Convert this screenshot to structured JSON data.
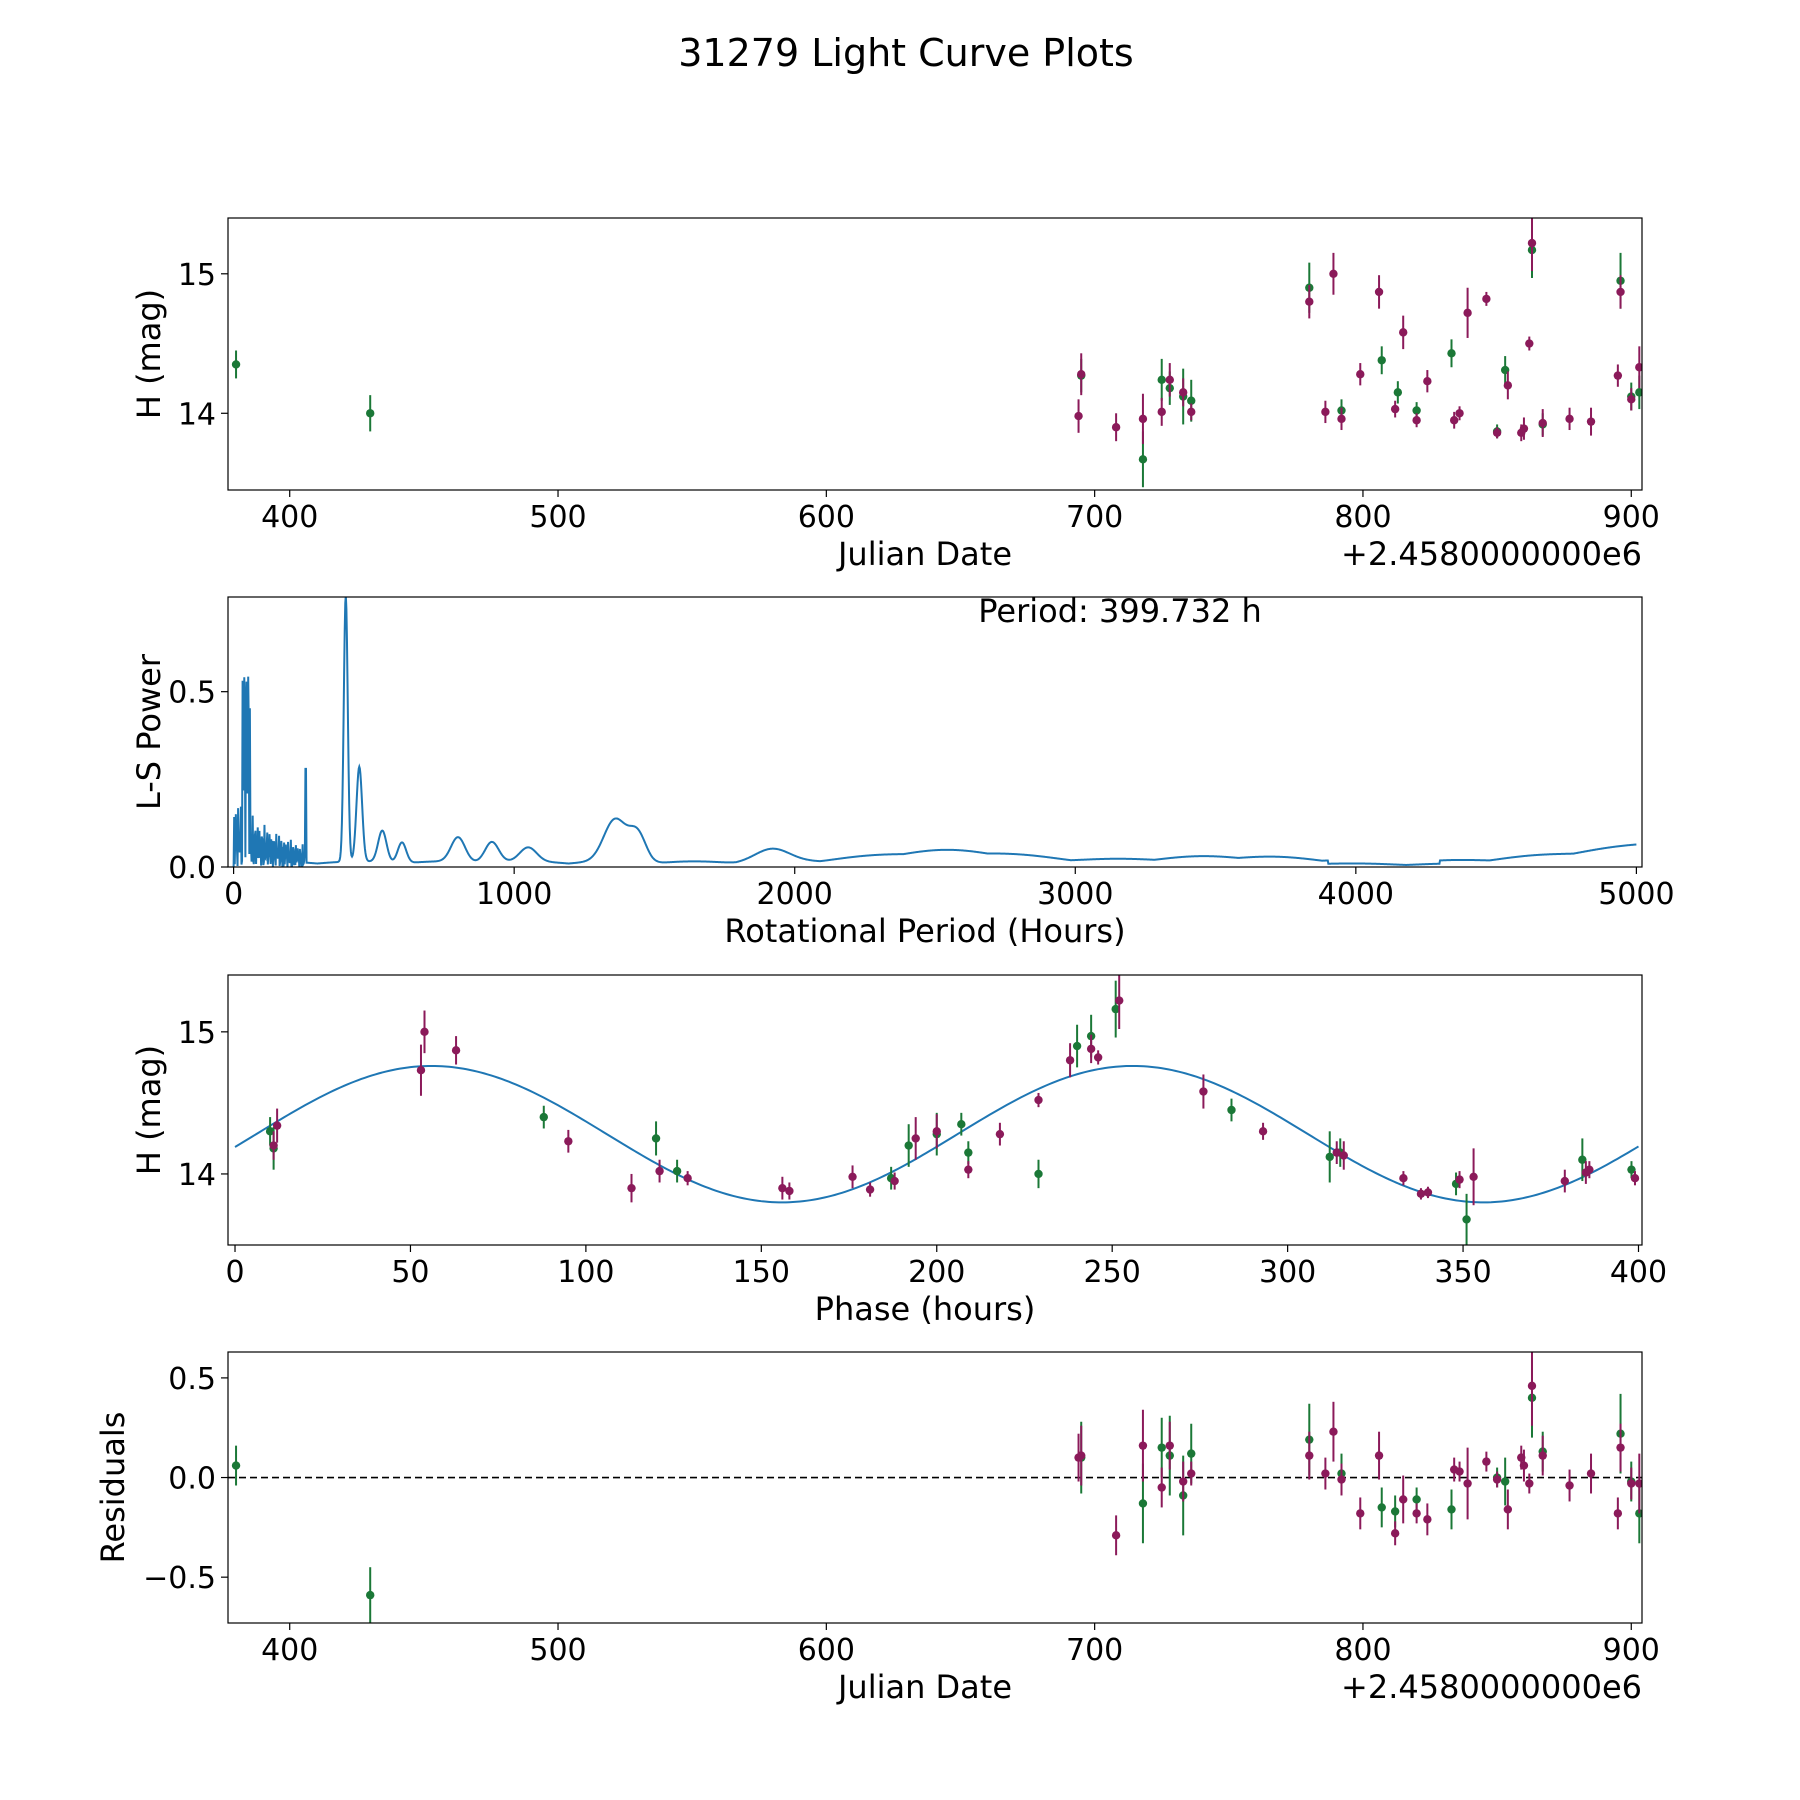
{
  "figure_title": "31279 Light Curve Plots",
  "colors": {
    "green": "#1b7837",
    "purple": "#8b1a5a",
    "line": "#1f77b4",
    "axis": "#000000"
  },
  "chart_data": [
    {
      "id": "lightcurve",
      "type": "scatter",
      "xlabel": "Julian Date",
      "ylabel": "H (mag)",
      "offset_label": "+2.4580000000e6",
      "xlim": [
        377,
        904
      ],
      "ylim": [
        13.45,
        15.4
      ],
      "xticks": [
        400,
        500,
        600,
        700,
        800,
        900
      ],
      "yticks": [
        14,
        15
      ],
      "series": [
        {
          "name": "green",
          "color": "green",
          "points": [
            [
              380,
              14.35,
              0.1
            ],
            [
              430,
              14.0,
              0.13
            ],
            [
              695,
              14.27,
              0.12
            ],
            [
              718,
              13.67,
              0.2
            ],
            [
              725,
              14.24,
              0.15
            ],
            [
              728,
              14.18,
              0.12
            ],
            [
              733,
              14.12,
              0.2
            ],
            [
              736,
              14.09,
              0.15
            ],
            [
              780,
              14.9,
              0.18
            ],
            [
              792,
              14.02,
              0.08
            ],
            [
              807,
              14.38,
              0.1
            ],
            [
              813,
              14.15,
              0.08
            ],
            [
              820,
              14.02,
              0.06
            ],
            [
              833,
              14.43,
              0.1
            ],
            [
              850,
              13.87,
              0.05
            ],
            [
              853,
              14.31,
              0.1
            ],
            [
              863,
              15.17,
              0.2
            ],
            [
              867,
              13.92,
              0.08
            ],
            [
              896,
              14.95,
              0.2
            ],
            [
              900,
              14.12,
              0.1
            ],
            [
              903,
              14.15,
              0.12
            ]
          ]
        },
        {
          "name": "purple",
          "color": "purple",
          "points": [
            [
              694,
              13.98,
              0.12
            ],
            [
              695,
              14.28,
              0.15
            ],
            [
              708,
              13.9,
              0.1
            ],
            [
              718,
              13.96,
              0.18
            ],
            [
              725,
              14.01,
              0.1
            ],
            [
              728,
              14.24,
              0.12
            ],
            [
              733,
              14.15,
              0.1
            ],
            [
              736,
              14.01,
              0.06
            ],
            [
              780,
              14.8,
              0.12
            ],
            [
              786,
              14.01,
              0.08
            ],
            [
              789,
              15.0,
              0.15
            ],
            [
              792,
              13.96,
              0.08
            ],
            [
              799,
              14.28,
              0.08
            ],
            [
              806,
              14.87,
              0.12
            ],
            [
              812,
              14.03,
              0.06
            ],
            [
              815,
              14.58,
              0.12
            ],
            [
              820,
              13.95,
              0.05
            ],
            [
              824,
              14.23,
              0.08
            ],
            [
              834,
              13.95,
              0.06
            ],
            [
              836,
              14.0,
              0.05
            ],
            [
              839,
              14.72,
              0.18
            ],
            [
              846,
              14.82,
              0.05
            ],
            [
              850,
              13.86,
              0.04
            ],
            [
              854,
              14.2,
              0.1
            ],
            [
              859,
              13.86,
              0.06
            ],
            [
              860,
              13.89,
              0.08
            ],
            [
              862,
              14.5,
              0.05
            ],
            [
              863,
              15.22,
              0.2
            ],
            [
              867,
              13.93,
              0.1
            ],
            [
              877,
              13.96,
              0.08
            ],
            [
              885,
              13.94,
              0.1
            ],
            [
              895,
              14.27,
              0.08
            ],
            [
              896,
              14.87,
              0.12
            ],
            [
              900,
              14.1,
              0.08
            ],
            [
              903,
              14.33,
              0.15
            ]
          ]
        }
      ]
    },
    {
      "id": "periodogram",
      "type": "line",
      "xlabel": "Rotational Period (Hours)",
      "ylabel": "L-S Power",
      "annotation": "Period: 399.732 h",
      "xlim": [
        -20,
        5020
      ],
      "ylim": [
        0,
        0.77
      ],
      "xticks": [
        0,
        1000,
        2000,
        3000,
        4000,
        5000
      ],
      "yticks": [
        0.0,
        0.5
      ],
      "ytick_labels": [
        "0.0",
        "0.5"
      ],
      "series": [
        {
          "name": "L-S Power",
          "color": "line",
          "x_start": 0,
          "x_end": 5000,
          "step": 2,
          "noise_until": 260,
          "peak_period": 399.732
        }
      ]
    },
    {
      "id": "phased",
      "type": "scatter",
      "xlabel": "Phase (hours)",
      "ylabel": "H (mag)",
      "xlim": [
        -2,
        401
      ],
      "ylim": [
        13.5,
        15.4
      ],
      "xticks": [
        0,
        50,
        100,
        150,
        200,
        250,
        300,
        350,
        400
      ],
      "yticks": [
        14,
        15
      ],
      "fit": {
        "type": "sine",
        "mean": 14.28,
        "amplitude": 0.48,
        "peak_phase": 56,
        "period": 199.866,
        "x_start": 0,
        "x_end": 400
      },
      "series": [
        {
          "name": "green",
          "color": "green",
          "points": [
            [
              10,
              14.3,
              0.1
            ],
            [
              11,
              14.18,
              0.15
            ],
            [
              88,
              14.4,
              0.08
            ],
            [
              120,
              14.25,
              0.12
            ],
            [
              126,
              14.02,
              0.08
            ],
            [
              187,
              13.97,
              0.08
            ],
            [
              192,
              14.2,
              0.15
            ],
            [
              200,
              14.28,
              0.15
            ],
            [
              207,
              14.35,
              0.08
            ],
            [
              209,
              14.15,
              0.08
            ],
            [
              229,
              14.0,
              0.1
            ],
            [
              240,
              14.9,
              0.15
            ],
            [
              244,
              14.97,
              0.15
            ],
            [
              251,
              15.16,
              0.2
            ],
            [
              284,
              14.45,
              0.08
            ],
            [
              312,
              14.12,
              0.18
            ],
            [
              315,
              14.15,
              0.1
            ],
            [
              348,
              13.93,
              0.08
            ],
            [
              351,
              13.68,
              0.18
            ],
            [
              384,
              14.1,
              0.15
            ],
            [
              398,
              14.03,
              0.06
            ]
          ]
        },
        {
          "name": "purple",
          "color": "purple",
          "points": [
            [
              11,
              14.2,
              0.1
            ],
            [
              12,
              14.34,
              0.12
            ],
            [
              53,
              14.73,
              0.18
            ],
            [
              54,
              15.0,
              0.15
            ],
            [
              63,
              14.87,
              0.1
            ],
            [
              95,
              14.23,
              0.08
            ],
            [
              113,
              13.9,
              0.1
            ],
            [
              121,
              14.02,
              0.08
            ],
            [
              129,
              13.97,
              0.05
            ],
            [
              156,
              13.9,
              0.08
            ],
            [
              158,
              13.88,
              0.06
            ],
            [
              176,
              13.98,
              0.08
            ],
            [
              181,
              13.89,
              0.05
            ],
            [
              188,
              13.95,
              0.06
            ],
            [
              194,
              14.25,
              0.15
            ],
            [
              200,
              14.3,
              0.12
            ],
            [
              209,
              14.03,
              0.06
            ],
            [
              218,
              14.28,
              0.08
            ],
            [
              229,
              14.52,
              0.05
            ],
            [
              238,
              14.8,
              0.12
            ],
            [
              244,
              14.88,
              0.1
            ],
            [
              246,
              14.82,
              0.05
            ],
            [
              252,
              15.22,
              0.2
            ],
            [
              276,
              14.58,
              0.12
            ],
            [
              293,
              14.3,
              0.06
            ],
            [
              314,
              14.15,
              0.08
            ],
            [
              316,
              14.13,
              0.1
            ],
            [
              333,
              13.97,
              0.05
            ],
            [
              338,
              13.86,
              0.04
            ],
            [
              340,
              13.87,
              0.04
            ],
            [
              349,
              13.96,
              0.06
            ],
            [
              353,
              13.98,
              0.2
            ],
            [
              379,
              13.95,
              0.08
            ],
            [
              385,
              14.01,
              0.08
            ],
            [
              386,
              14.03,
              0.06
            ],
            [
              399,
              13.97,
              0.05
            ]
          ]
        }
      ]
    },
    {
      "id": "residuals",
      "type": "scatter",
      "xlabel": "Julian Date",
      "ylabel": "Residuals",
      "offset_label": "+2.4580000000e6",
      "xlim": [
        377,
        904
      ],
      "ylim": [
        -0.73,
        0.63
      ],
      "xticks": [
        400,
        500,
        600,
        700,
        800,
        900
      ],
      "yticks": [
        -0.5,
        0.0,
        0.5
      ],
      "ytick_labels": [
        "−0.5",
        "0.0",
        "0.5"
      ],
      "reference_line": 0.0,
      "series": [
        {
          "name": "green",
          "color": "green",
          "points": [
            [
              380,
              0.06,
              0.1
            ],
            [
              430,
              -0.59,
              0.14
            ],
            [
              695,
              0.1,
              0.18
            ],
            [
              718,
              -0.13,
              0.2
            ],
            [
              725,
              0.15,
              0.15
            ],
            [
              728,
              0.11,
              0.2
            ],
            [
              733,
              -0.09,
              0.2
            ],
            [
              736,
              0.12,
              0.15
            ],
            [
              780,
              0.19,
              0.18
            ],
            [
              792,
              0.02,
              0.1
            ],
            [
              807,
              -0.15,
              0.1
            ],
            [
              812,
              -0.17,
              0.08
            ],
            [
              820,
              -0.11,
              0.06
            ],
            [
              833,
              -0.16,
              0.1
            ],
            [
              850,
              0.0,
              0.05
            ],
            [
              853,
              -0.02,
              0.12
            ],
            [
              863,
              0.4,
              0.2
            ],
            [
              867,
              0.13,
              0.1
            ],
            [
              896,
              0.22,
              0.2
            ],
            [
              900,
              -0.02,
              0.1
            ],
            [
              903,
              -0.18,
              0.15
            ]
          ]
        },
        {
          "name": "purple",
          "color": "purple",
          "points": [
            [
              694,
              0.1,
              0.12
            ],
            [
              695,
              0.11,
              0.15
            ],
            [
              708,
              -0.29,
              0.1
            ],
            [
              718,
              0.16,
              0.18
            ],
            [
              725,
              -0.05,
              0.1
            ],
            [
              728,
              0.16,
              0.12
            ],
            [
              733,
              -0.02,
              0.1
            ],
            [
              736,
              0.02,
              0.06
            ],
            [
              780,
              0.11,
              0.12
            ],
            [
              786,
              0.02,
              0.08
            ],
            [
              789,
              0.23,
              0.15
            ],
            [
              792,
              -0.01,
              0.08
            ],
            [
              799,
              -0.18,
              0.08
            ],
            [
              806,
              0.11,
              0.12
            ],
            [
              812,
              -0.28,
              0.06
            ],
            [
              815,
              -0.11,
              0.12
            ],
            [
              820,
              -0.18,
              0.05
            ],
            [
              824,
              -0.21,
              0.08
            ],
            [
              834,
              0.04,
              0.06
            ],
            [
              836,
              0.03,
              0.05
            ],
            [
              839,
              -0.03,
              0.18
            ],
            [
              846,
              0.08,
              0.05
            ],
            [
              850,
              -0.01,
              0.04
            ],
            [
              854,
              -0.16,
              0.1
            ],
            [
              859,
              0.1,
              0.06
            ],
            [
              860,
              0.06,
              0.08
            ],
            [
              862,
              -0.03,
              0.05
            ],
            [
              863,
              0.46,
              0.2
            ],
            [
              867,
              0.11,
              0.1
            ],
            [
              877,
              -0.04,
              0.08
            ],
            [
              885,
              0.02,
              0.1
            ],
            [
              895,
              -0.18,
              0.08
            ],
            [
              896,
              0.15,
              0.12
            ],
            [
              900,
              -0.03,
              0.08
            ],
            [
              903,
              -0.03,
              0.15
            ]
          ]
        }
      ]
    }
  ]
}
